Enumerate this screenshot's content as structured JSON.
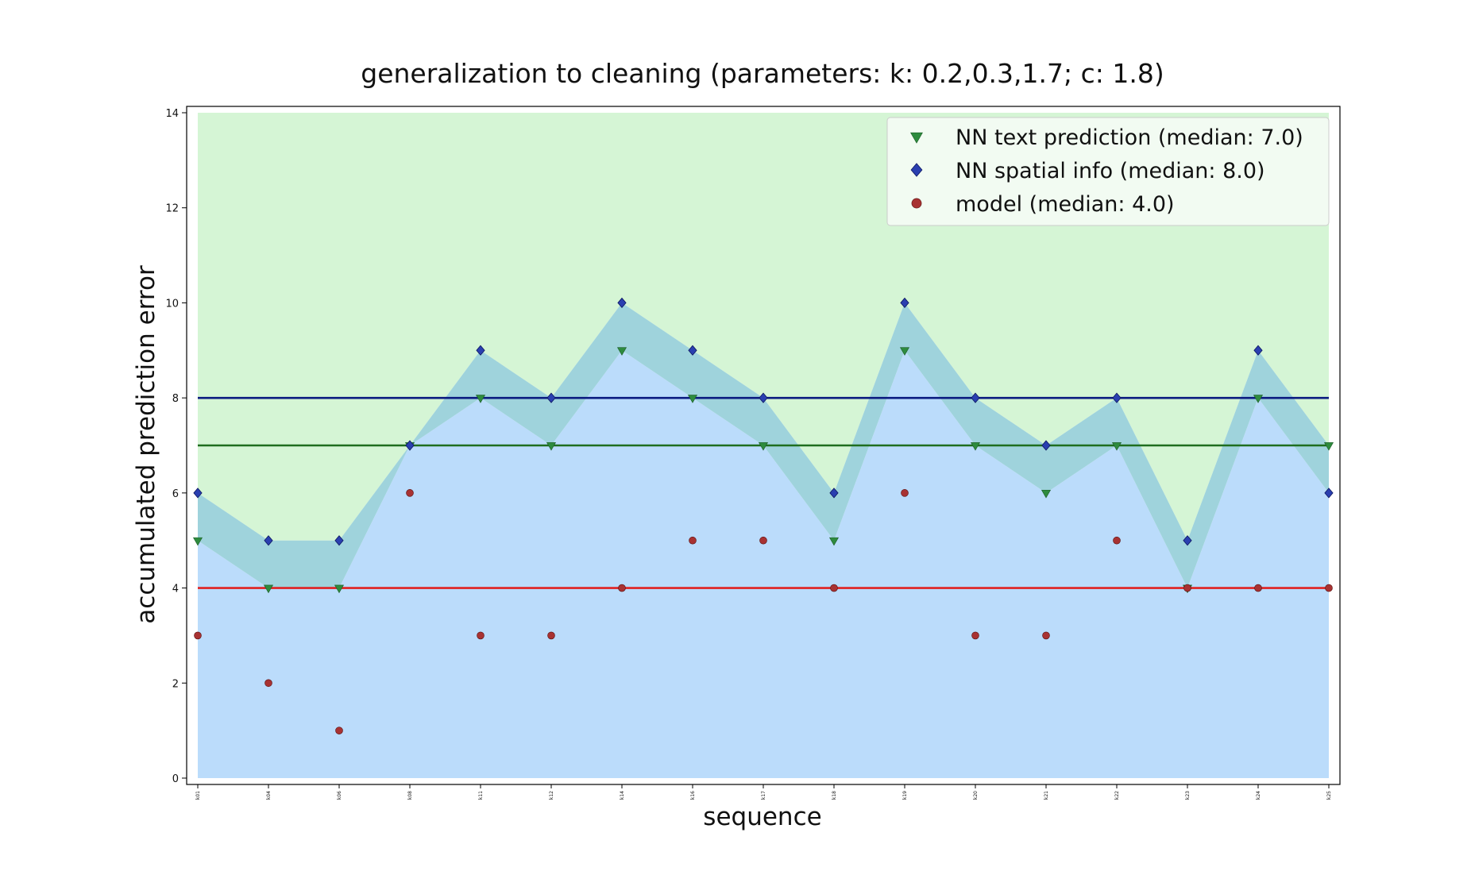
{
  "chart_data": {
    "type": "scatter",
    "title": "generalization to cleaning (parameters: k: 0.2,0.3,1.7; c: 1.8)",
    "xlabel": "sequence",
    "ylabel": "accumulated prediction error",
    "categories": [
      "k01",
      "k04",
      "k06",
      "k08",
      "k11",
      "k12",
      "k14",
      "k16",
      "k17",
      "k18",
      "k19",
      "k20",
      "k21",
      "k22",
      "k23",
      "k24",
      "k25"
    ],
    "ylim": [
      0,
      14
    ],
    "yticks": [
      0,
      2,
      4,
      6,
      8,
      10,
      12,
      14
    ],
    "grid": false,
    "legend_position": "top-right",
    "series": [
      {
        "name": "NN text prediction (median: 7.0)",
        "marker": "triangle-down",
        "color": "#2e8b3e",
        "median": 7.0,
        "median_color": "#1f6e1f",
        "values": [
          5,
          4,
          4,
          7,
          8,
          7,
          9,
          8,
          7,
          5,
          9,
          7,
          6,
          7,
          4,
          8,
          7
        ]
      },
      {
        "name": "NN spatial info (median: 8.0)",
        "marker": "diamond",
        "color": "#2a3fb0",
        "median": 8.0,
        "median_color": "#0a1a80",
        "values": [
          6,
          5,
          5,
          7,
          9,
          8,
          10,
          9,
          8,
          6,
          10,
          8,
          7,
          8,
          5,
          9,
          6
        ]
      },
      {
        "name": "model (median: 4.0)",
        "marker": "circle",
        "color": "#a83232",
        "median": 4.0,
        "median_color": "#e02020",
        "values": [
          3,
          2,
          1,
          6,
          3,
          3,
          4,
          5,
          5,
          4,
          6,
          3,
          3,
          5,
          4,
          4,
          4
        ]
      }
    ],
    "fills": {
      "upper_region_color": "#d5f5d5",
      "lower_region_color": "#bbdcfb",
      "band_color": "#9fd3dc"
    }
  }
}
